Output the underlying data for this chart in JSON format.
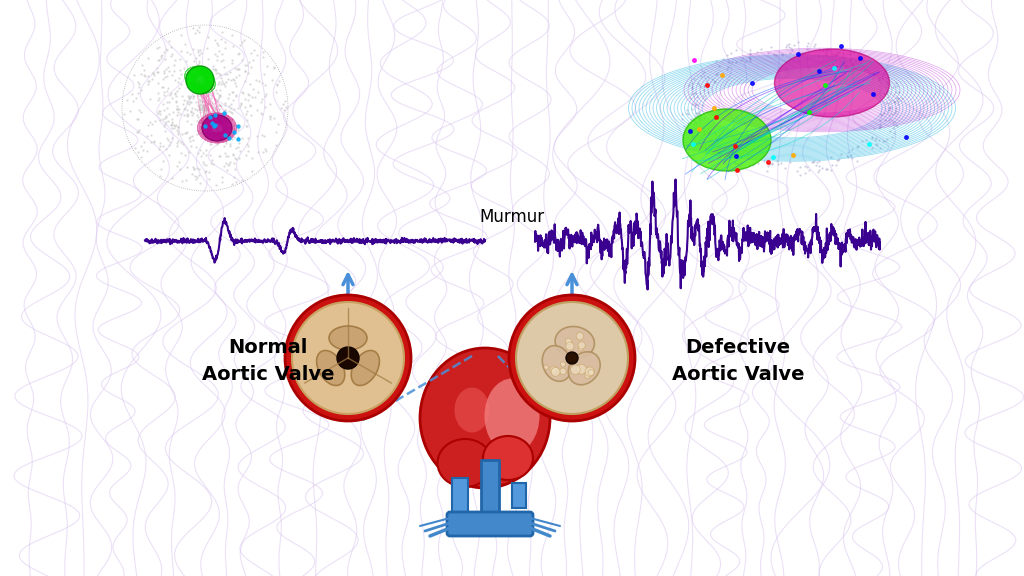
{
  "bg_color": "#ffffff",
  "normal_label": "Normal\nAortic Valve",
  "defective_label": "Defective\nAortic Valve",
  "murmur_label": "Murmur",
  "label_fontsize": 14,
  "murmur_fontsize": 12,
  "waveform_color_dark": "#3a0090",
  "waveform_color_light": "#dcc8f0",
  "arrow_color": "#4a90d9"
}
